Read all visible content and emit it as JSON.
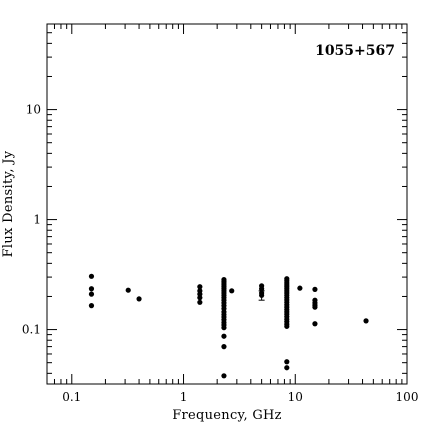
{
  "chart_data": {
    "type": "scatter",
    "title": "1055+567",
    "xlabel": "Frequency, GHz",
    "ylabel": "Flux Density, Jy",
    "xscale": "log",
    "yscale": "log",
    "xlim": [
      0.06,
      100
    ],
    "ylim": [
      0.032,
      60
    ],
    "grid": false,
    "xticks": [
      {
        "value": 0.1,
        "label": "0.1"
      },
      {
        "value": 1,
        "label": "1"
      },
      {
        "value": 10,
        "label": "10"
      },
      {
        "value": 100,
        "label": "100"
      }
    ],
    "yticks": [
      {
        "value": 0.1,
        "label": "0.1"
      },
      {
        "value": 1,
        "label": "1"
      },
      {
        "value": 10,
        "label": "10"
      }
    ],
    "points": [
      {
        "x": 0.15,
        "y": 0.305
      },
      {
        "x": 0.15,
        "y": 0.235
      },
      {
        "x": 0.15,
        "y": 0.21
      },
      {
        "x": 0.15,
        "y": 0.165
      },
      {
        "x": 0.32,
        "y": 0.228
      },
      {
        "x": 0.4,
        "y": 0.19
      },
      {
        "x": 1.4,
        "y": 0.245
      },
      {
        "x": 1.4,
        "y": 0.225
      },
      {
        "x": 1.4,
        "y": 0.21
      },
      {
        "x": 1.4,
        "y": 0.195
      },
      {
        "x": 1.4,
        "y": 0.177
      },
      {
        "x": 2.3,
        "y": 0.285
      },
      {
        "x": 2.3,
        "y": 0.275
      },
      {
        "x": 2.3,
        "y": 0.265
      },
      {
        "x": 2.3,
        "y": 0.255
      },
      {
        "x": 2.3,
        "y": 0.245
      },
      {
        "x": 2.3,
        "y": 0.235
      },
      {
        "x": 2.3,
        "y": 0.225
      },
      {
        "x": 2.3,
        "y": 0.215
      },
      {
        "x": 2.3,
        "y": 0.205
      },
      {
        "x": 2.3,
        "y": 0.195
      },
      {
        "x": 2.3,
        "y": 0.185
      },
      {
        "x": 2.3,
        "y": 0.175
      },
      {
        "x": 2.3,
        "y": 0.165
      },
      {
        "x": 2.3,
        "y": 0.155
      },
      {
        "x": 2.3,
        "y": 0.145
      },
      {
        "x": 2.3,
        "y": 0.137
      },
      {
        "x": 2.3,
        "y": 0.13
      },
      {
        "x": 2.3,
        "y": 0.123
      },
      {
        "x": 2.3,
        "y": 0.116
      },
      {
        "x": 2.3,
        "y": 0.11
      },
      {
        "x": 2.3,
        "y": 0.104
      },
      {
        "x": 2.3,
        "y": 0.087
      },
      {
        "x": 2.3,
        "y": 0.07
      },
      {
        "x": 2.3,
        "y": 0.038
      },
      {
        "x": 2.7,
        "y": 0.225
      },
      {
        "x": 5.0,
        "y": 0.25
      },
      {
        "x": 5.0,
        "y": 0.235
      },
      {
        "x": 5.0,
        "y": 0.215
      },
      {
        "x": 5.0,
        "y": 0.205,
        "yerr": [
          0.185,
          0.225
        ]
      },
      {
        "x": 8.4,
        "y": 0.29
      },
      {
        "x": 8.4,
        "y": 0.278
      },
      {
        "x": 8.4,
        "y": 0.266
      },
      {
        "x": 8.4,
        "y": 0.255
      },
      {
        "x": 8.4,
        "y": 0.245
      },
      {
        "x": 8.4,
        "y": 0.235
      },
      {
        "x": 8.4,
        "y": 0.225
      },
      {
        "x": 8.4,
        "y": 0.215
      },
      {
        "x": 8.4,
        "y": 0.205
      },
      {
        "x": 8.4,
        "y": 0.195
      },
      {
        "x": 8.4,
        "y": 0.186
      },
      {
        "x": 8.4,
        "y": 0.177
      },
      {
        "x": 8.4,
        "y": 0.168
      },
      {
        "x": 8.4,
        "y": 0.16
      },
      {
        "x": 8.4,
        "y": 0.152
      },
      {
        "x": 8.4,
        "y": 0.145
      },
      {
        "x": 8.4,
        "y": 0.138
      },
      {
        "x": 8.4,
        "y": 0.131
      },
      {
        "x": 8.4,
        "y": 0.124
      },
      {
        "x": 8.4,
        "y": 0.118
      },
      {
        "x": 8.4,
        "y": 0.112
      },
      {
        "x": 8.4,
        "y": 0.107
      },
      {
        "x": 8.4,
        "y": 0.051
      },
      {
        "x": 8.4,
        "y": 0.045
      },
      {
        "x": 11,
        "y": 0.238
      },
      {
        "x": 15,
        "y": 0.232
      },
      {
        "x": 15,
        "y": 0.185
      },
      {
        "x": 15,
        "y": 0.175
      },
      {
        "x": 15,
        "y": 0.167
      },
      {
        "x": 15,
        "y": 0.16
      },
      {
        "x": 15,
        "y": 0.113
      },
      {
        "x": 43,
        "y": 0.12
      }
    ]
  }
}
